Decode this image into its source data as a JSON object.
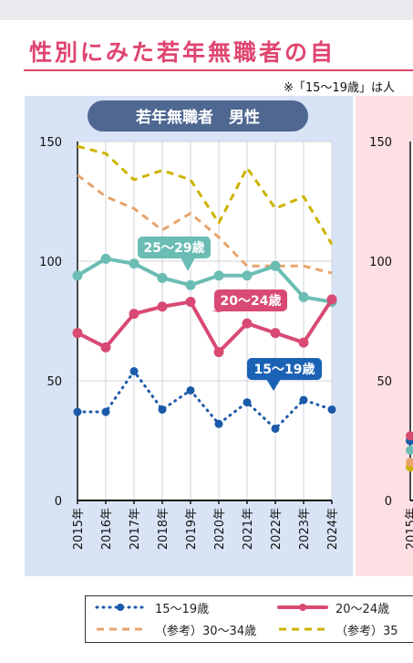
{
  "page": {
    "title": "性別にみた若年無職者の自",
    "note": "※「15〜19歳」は人"
  },
  "chart_data": [
    {
      "type": "line",
      "title": "若年無職者　男性",
      "categories": [
        "2015年",
        "2016年",
        "2017年",
        "2018年",
        "2019年",
        "2020年",
        "2021年",
        "2022年",
        "2023年",
        "2024年"
      ],
      "ylim": [
        0,
        150
      ],
      "yticks": [
        0,
        50,
        100,
        150
      ],
      "grid": true,
      "series": [
        {
          "name": "15〜19歳",
          "style": "dotted",
          "color": "#1b5aa8",
          "label_color": "#1b62b5",
          "values": [
            37,
            37,
            54,
            38,
            46,
            32,
            41,
            30,
            42,
            38
          ]
        },
        {
          "name": "20〜24歳",
          "style": "solid",
          "color": "#d94a73",
          "label_color": "#d94a73",
          "values": [
            70,
            64,
            78,
            81,
            83,
            62,
            74,
            70,
            66,
            84
          ]
        },
        {
          "name": "25〜29歳",
          "style": "solid",
          "color": "#6bbdb4",
          "label_color": "#6bbdb4",
          "values": [
            94,
            101,
            99,
            93,
            90,
            94,
            94,
            98,
            85,
            83
          ]
        },
        {
          "name": "（参考）30〜34歳",
          "style": "dashed",
          "color": "#e8a46b",
          "values": [
            136,
            127,
            122,
            113,
            120,
            110,
            98,
            98,
            98,
            95
          ]
        },
        {
          "name": "（参考）35",
          "style": "dashed",
          "color": "#cdb400",
          "values": [
            148,
            145,
            134,
            138,
            134,
            116,
            139,
            122,
            127,
            107
          ]
        }
      ]
    },
    {
      "type": "line",
      "categories": [
        "2015年"
      ],
      "ylim": [
        0,
        150
      ],
      "yticks": [
        0,
        50,
        100,
        150
      ],
      "series": [
        {
          "name": "15〜19歳",
          "values": [
            25
          ]
        },
        {
          "name": "20〜24歳",
          "values": [
            27
          ]
        },
        {
          "name": "25〜29歳",
          "values": [
            21
          ]
        },
        {
          "name": "（参考）30〜34歳",
          "values": [
            16
          ]
        },
        {
          "name": "（参考）35",
          "values": [
            14
          ]
        }
      ]
    }
  ],
  "legend": {
    "items": [
      {
        "label": "15〜19歳",
        "color": "#1b5aa8",
        "style": "dotted"
      },
      {
        "label": "20〜24歳",
        "color": "#d94a73",
        "style": "solid"
      },
      {
        "label": "（参考）30〜34歳",
        "color": "#e8a46b",
        "style": "dashed"
      },
      {
        "label": "（参考）35",
        "color": "#cdb400",
        "style": "dashed"
      }
    ]
  },
  "colors": {
    "accent": "#e0456f",
    "panel_male": "#d9e3f6",
    "panel_female": "#fce0e3",
    "panel_title_bg": "#4f6891"
  }
}
